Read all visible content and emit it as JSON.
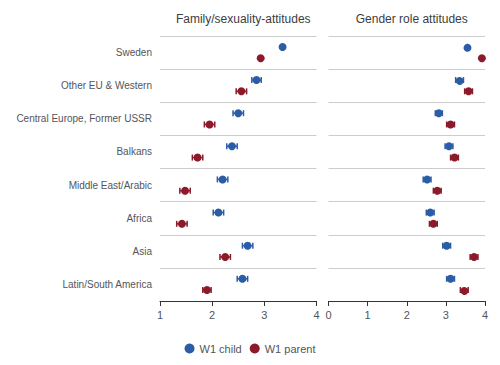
{
  "chart_data": [
    {
      "type": "scatter",
      "orientation": "horizontal",
      "title": "Family/sexuality-attitudes",
      "categories": [
        "Sweden",
        "Other EU & Western",
        "Central Europe, Former USSR",
        "Balkans",
        "Middle East/Arabic",
        "Africa",
        "Asia",
        "Latin/South America"
      ],
      "series": [
        {
          "name": "W1 child",
          "color": "#2B5DA6",
          "marker": "circle",
          "values": [
            3.35,
            2.85,
            2.5,
            2.38,
            2.2,
            2.12,
            2.68,
            2.58
          ],
          "lo": [
            3.35,
            2.76,
            2.4,
            2.28,
            2.1,
            2.02,
            2.58,
            2.48
          ],
          "hi": [
            3.35,
            2.94,
            2.6,
            2.48,
            2.3,
            2.22,
            2.78,
            2.68
          ]
        },
        {
          "name": "W1 parent",
          "color": "#8B1A2A",
          "marker": "circle",
          "values": [
            2.93,
            2.56,
            1.95,
            1.72,
            1.48,
            1.42,
            2.25,
            1.9
          ],
          "lo": [
            2.93,
            2.46,
            1.85,
            1.62,
            1.38,
            1.32,
            2.15,
            1.82
          ],
          "hi": [
            2.93,
            2.66,
            2.05,
            1.82,
            1.58,
            1.52,
            2.35,
            1.98
          ]
        }
      ],
      "xlim": [
        1,
        4
      ],
      "xticks": [
        1,
        2,
        3,
        4
      ],
      "grid": true,
      "legend": "bottom"
    },
    {
      "type": "scatter",
      "orientation": "horizontal",
      "title": "Gender role attitudes",
      "categories": [
        "Sweden",
        "Other EU & Western",
        "Central Europe, Former USSR",
        "Balkans",
        "Middle East/Arabic",
        "Africa",
        "Asia",
        "Latin/South America"
      ],
      "series": [
        {
          "name": "W1 child",
          "color": "#2B5DA6",
          "marker": "circle",
          "values": [
            3.55,
            3.35,
            2.82,
            3.08,
            2.52,
            2.6,
            3.02,
            3.12
          ],
          "lo": [
            3.55,
            3.25,
            2.73,
            2.98,
            2.42,
            2.5,
            2.92,
            3.02
          ],
          "hi": [
            3.55,
            3.45,
            2.91,
            3.18,
            2.62,
            2.7,
            3.12,
            3.22
          ]
        },
        {
          "name": "W1 parent",
          "color": "#8B1A2A",
          "marker": "circle",
          "values": [
            3.92,
            3.58,
            3.12,
            3.22,
            2.78,
            2.68,
            3.72,
            3.47
          ],
          "lo": [
            3.92,
            3.48,
            3.02,
            3.12,
            2.68,
            2.58,
            3.62,
            3.37
          ],
          "hi": [
            3.92,
            3.68,
            3.22,
            3.32,
            2.88,
            2.78,
            3.82,
            3.57
          ]
        }
      ],
      "xlim": [
        0,
        4
      ],
      "xticks": [
        0,
        1,
        2,
        3,
        4
      ],
      "grid": true,
      "tick_labels": "x"
    }
  ]
}
